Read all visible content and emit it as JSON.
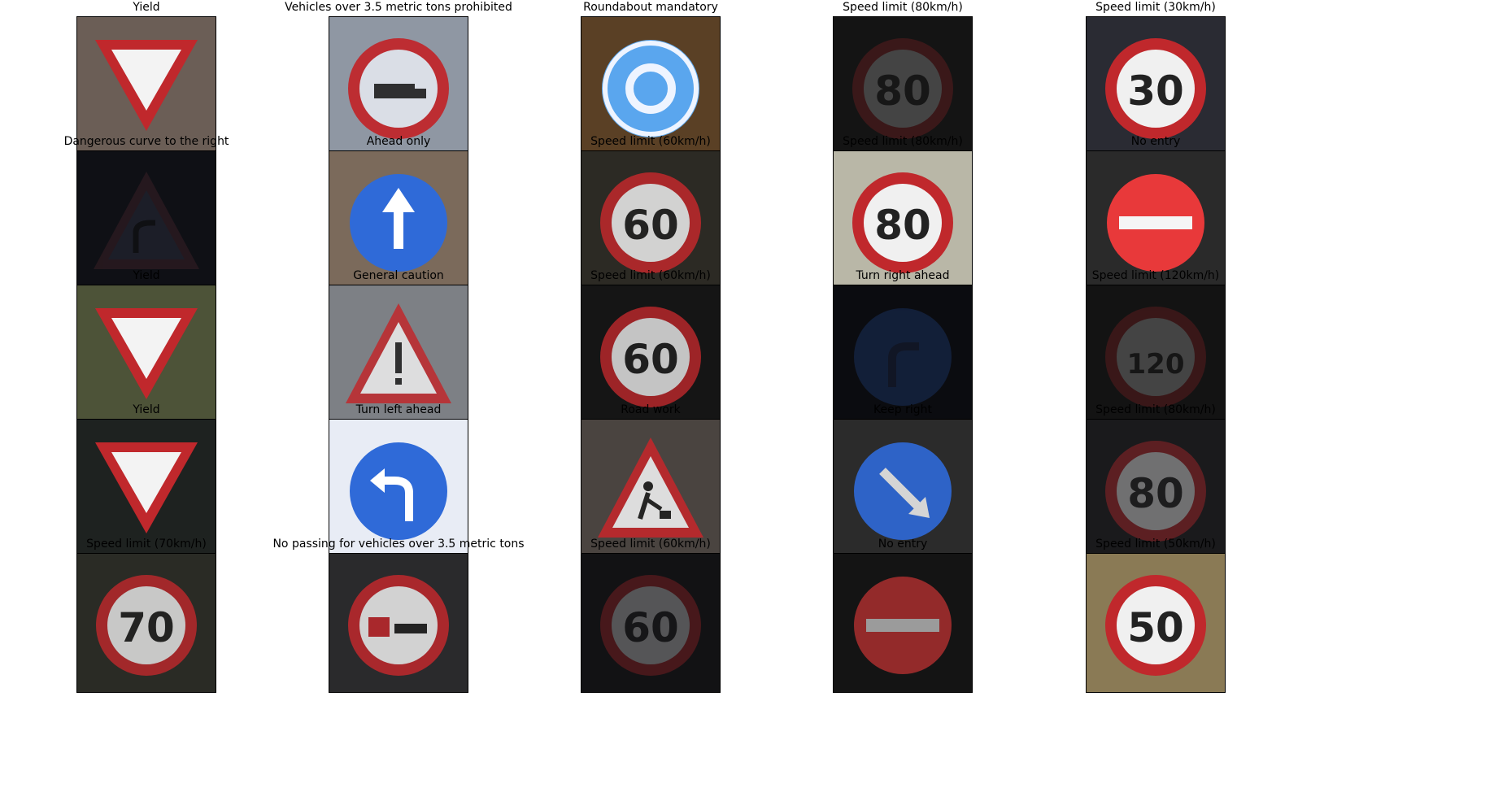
{
  "grid": {
    "rows": 5,
    "cols": 5,
    "cells": [
      {
        "label": "Yield",
        "sign": "yield",
        "bg": "#6b5e56",
        "bright": 1.0
      },
      {
        "label": "Vehicles over 3.5 metric tons prohibited",
        "sign": "truck-prohibited",
        "bg": "#8f97a3",
        "bright": 0.95
      },
      {
        "label": "Roundabout mandatory",
        "sign": "roundabout",
        "bg": "#5a4025",
        "bright": 1.0
      },
      {
        "label": "Speed limit (80km/h)",
        "sign": "speed-80",
        "bg": "#141414",
        "bright": 0.22
      },
      {
        "label": "Speed limit (30km/h)",
        "sign": "speed-30",
        "bg": "#2a2b33",
        "bright": 1.0
      },
      {
        "label": "Dangerous curve to the right",
        "sign": "curve-right",
        "bg": "#0f1015",
        "bright": 0.3
      },
      {
        "label": "Ahead only",
        "sign": "ahead-only",
        "bg": "#7b6a5b",
        "bright": 1.0
      },
      {
        "label": "Speed limit (60km/h)",
        "sign": "speed-60",
        "bg": "#2c2a24",
        "bright": 0.85
      },
      {
        "label": "Speed limit (80km/h)",
        "sign": "speed-80",
        "bg": "#b9b7a7",
        "bright": 1.0
      },
      {
        "label": "No entry",
        "sign": "no-entry",
        "bg": "#2a2a2a",
        "bright": 1.0
      },
      {
        "label": "Yield",
        "sign": "yield",
        "bg": "#4d5338",
        "bright": 1.0
      },
      {
        "label": "General caution",
        "sign": "general-caution",
        "bg": "#7d8085",
        "bright": 0.85
      },
      {
        "label": "Speed limit (60km/h)",
        "sign": "speed-60",
        "bg": "#151515",
        "bright": 0.8
      },
      {
        "label": "Turn right ahead",
        "sign": "turn-right",
        "bg": "#0b0c10",
        "bright": 0.2
      },
      {
        "label": "Speed limit (120km/h)",
        "sign": "speed-120",
        "bg": "#131313",
        "bright": 0.22
      },
      {
        "label": "Yield",
        "sign": "yield",
        "bg": "#1e2220",
        "bright": 1.0
      },
      {
        "label": "Turn left ahead",
        "sign": "turn-left",
        "bg": "#e8ecf5",
        "bright": 1.0
      },
      {
        "label": "Road work",
        "sign": "road-work",
        "bg": "#4a4440",
        "bright": 0.9
      },
      {
        "label": "Keep right",
        "sign": "keep-right",
        "bg": "#2b2b2b",
        "bright": 0.9
      },
      {
        "label": "Speed limit (80km/h)",
        "sign": "speed-80",
        "bg": "#1a1a1c",
        "bright": 0.4
      },
      {
        "label": "Speed limit (70km/h)",
        "sign": "speed-70",
        "bg": "#2a2b25",
        "bright": 0.8
      },
      {
        "label": "No passing for vehicles over 3.5 metric tons",
        "sign": "no-passing-trucks",
        "bg": "#2a2a2c",
        "bright": 0.85
      },
      {
        "label": "Speed limit (60km/h)",
        "sign": "speed-60",
        "bg": "#121214",
        "bright": 0.3
      },
      {
        "label": "No entry",
        "sign": "no-entry",
        "bg": "#141414",
        "bright": 0.6
      },
      {
        "label": "Speed limit (50km/h)",
        "sign": "speed-50",
        "bg": "#8a7a55",
        "bright": 1.0
      }
    ]
  }
}
